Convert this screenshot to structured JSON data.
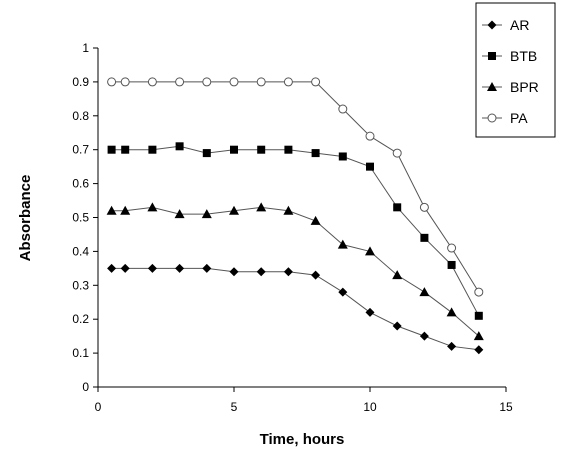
{
  "chart_data": {
    "type": "line",
    "xlabel": "Time, hours",
    "ylabel": "Absorbance",
    "xlim": [
      0,
      15
    ],
    "ylim": [
      0,
      1
    ],
    "xticks": [
      "0",
      "5",
      "10",
      "15"
    ],
    "yticks": [
      "0",
      "0.1",
      "0.2",
      "0.3",
      "0.4",
      "0.5",
      "0.6",
      "0.7",
      "0.8",
      "0.9",
      "1"
    ],
    "legend_position": "top-right",
    "grid": false,
    "series": [
      {
        "name": "AR",
        "marker": "diamond",
        "color": "#000000",
        "x": [
          0.5,
          1,
          2,
          3,
          4,
          5,
          6,
          7,
          8,
          9,
          10,
          11,
          12,
          13,
          14
        ],
        "y": [
          0.35,
          0.35,
          0.35,
          0.35,
          0.35,
          0.34,
          0.34,
          0.34,
          0.33,
          0.28,
          0.22,
          0.18,
          0.15,
          0.12,
          0.11
        ]
      },
      {
        "name": "BTB",
        "marker": "square",
        "color": "#000000",
        "x": [
          0.5,
          1,
          2,
          3,
          4,
          5,
          6,
          7,
          8,
          9,
          10,
          11,
          12,
          13,
          14
        ],
        "y": [
          0.7,
          0.7,
          0.7,
          0.71,
          0.69,
          0.7,
          0.7,
          0.7,
          0.69,
          0.68,
          0.65,
          0.53,
          0.44,
          0.36,
          0.21
        ]
      },
      {
        "name": "BPR",
        "marker": "triangle",
        "color": "#000000",
        "x": [
          0.5,
          1,
          2,
          3,
          4,
          5,
          6,
          7,
          8,
          9,
          10,
          11,
          12,
          13,
          14
        ],
        "y": [
          0.52,
          0.52,
          0.53,
          0.51,
          0.51,
          0.52,
          0.53,
          0.52,
          0.49,
          0.42,
          0.4,
          0.33,
          0.28,
          0.22,
          0.15
        ]
      },
      {
        "name": "PA",
        "marker": "circle-open",
        "color": "#000000",
        "x": [
          0.5,
          1,
          2,
          3,
          4,
          5,
          6,
          7,
          8,
          9,
          10,
          11,
          12,
          13,
          14
        ],
        "y": [
          0.9,
          0.9,
          0.9,
          0.9,
          0.9,
          0.9,
          0.9,
          0.9,
          0.9,
          0.82,
          0.74,
          0.69,
          0.53,
          0.41,
          0.28
        ]
      }
    ]
  }
}
